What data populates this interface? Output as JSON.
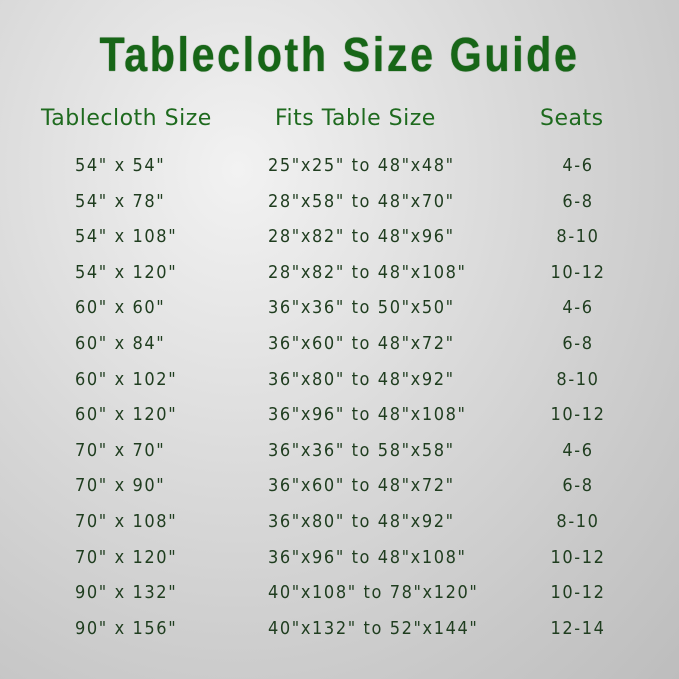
{
  "title": "Tablecloth Size Guide",
  "headers": {
    "size": "Tablecloth Size",
    "fits": "Fits Table Size",
    "seats": "Seats"
  },
  "colors": {
    "title": "#176617",
    "header": "#1e6a1e",
    "text": "#1f3d1f"
  },
  "rows": [
    {
      "size": "54\" x 54\"",
      "fits": "25\"x25\" to 48\"x48\"",
      "seats": "4-6"
    },
    {
      "size": "54\" x 78\"",
      "fits": "28\"x58\" to 48\"x70\"",
      "seats": "6-8"
    },
    {
      "size": "54\" x 108\"",
      "fits": "28\"x82\" to 48\"x96\"",
      "seats": "8-10"
    },
    {
      "size": "54\" x 120\"",
      "fits": "28\"x82\" to 48\"x108\"",
      "seats": "10-12"
    },
    {
      "size": "60\" x 60\"",
      "fits": "36\"x36\" to 50\"x50\"",
      "seats": "4-6"
    },
    {
      "size": "60\" x 84\"",
      "fits": "36\"x60\" to 48\"x72\"",
      "seats": "6-8"
    },
    {
      "size": "60\" x 102\"",
      "fits": "36\"x80\" to 48\"x92\"",
      "seats": "8-10"
    },
    {
      "size": "60\" x 120\"",
      "fits": "36\"x96\" to 48\"x108\"",
      "seats": "10-12"
    },
    {
      "size": "70\" x 70\"",
      "fits": "36\"x36\" to 58\"x58\"",
      "seats": "4-6"
    },
    {
      "size": "70\" x 90\"",
      "fits": "36\"x60\" to 48\"x72\"",
      "seats": "6-8"
    },
    {
      "size": "70\" x 108\"",
      "fits": "36\"x80\" to 48\"x92\"",
      "seats": "8-10"
    },
    {
      "size": "70\" x 120\"",
      "fits": "36\"x96\" to 48\"x108\"",
      "seats": "10-12"
    },
    {
      "size": "90\" x 132\"",
      "fits": "40\"x108\" to 78\"x120\"",
      "seats": "10-12"
    },
    {
      "size": "90\" x 156\"",
      "fits": "40\"x132\" to 52\"x144\"",
      "seats": "12-14"
    }
  ]
}
